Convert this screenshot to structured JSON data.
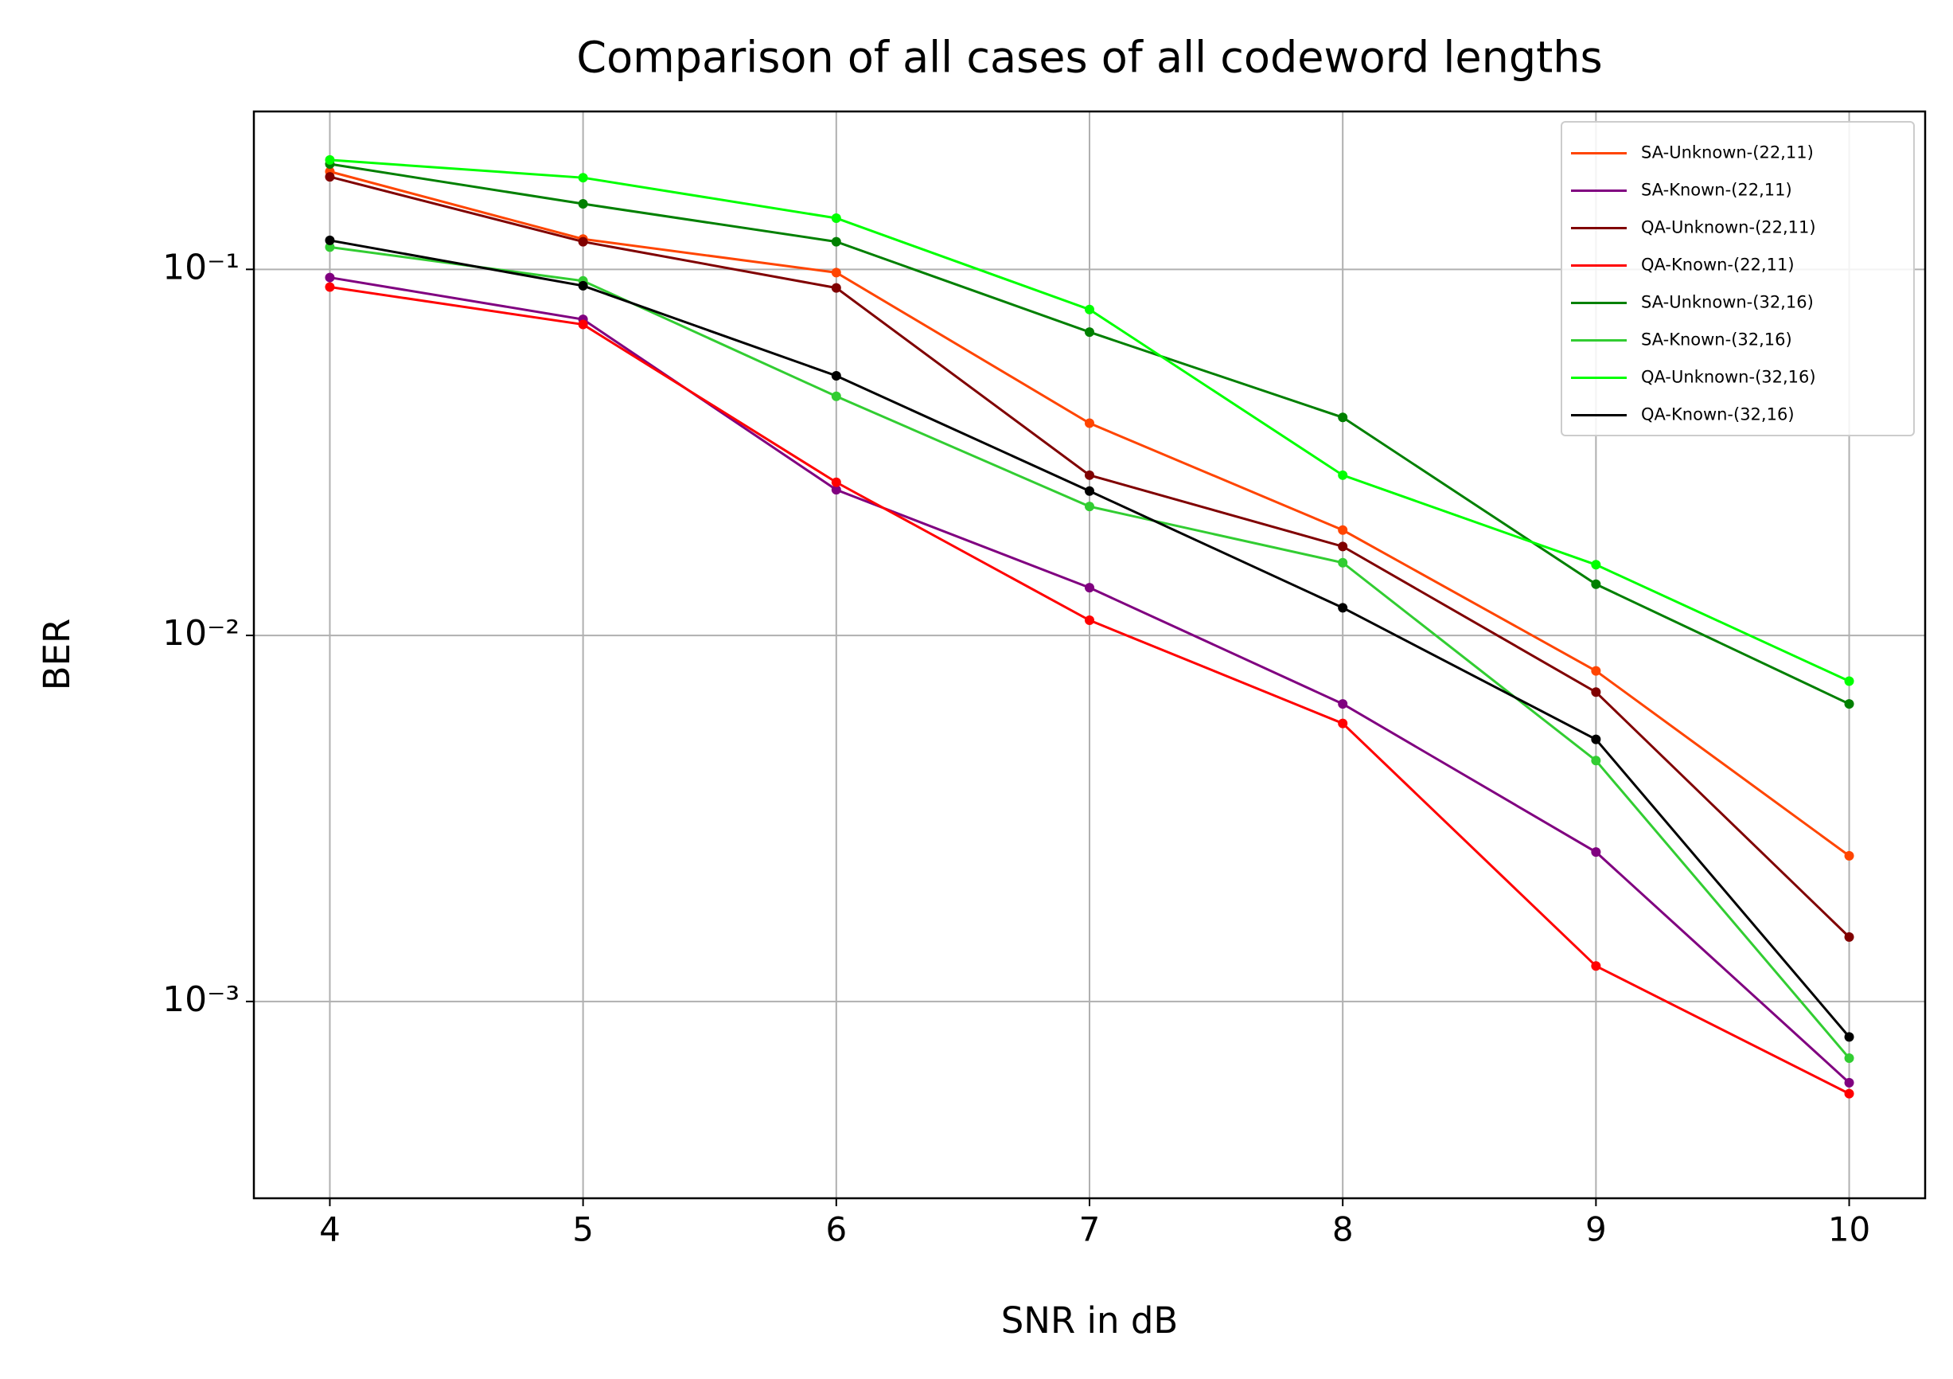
{
  "chart_data": {
    "type": "line",
    "title": "Comparison of all cases of all codeword lengths",
    "xlabel": "SNR in dB",
    "ylabel": "BER",
    "x": [
      4,
      5,
      6,
      7,
      8,
      9,
      10
    ],
    "xlim": [
      3.7,
      10.3
    ],
    "xticks": [
      4,
      5,
      6,
      7,
      8,
      9,
      10
    ],
    "ylim": [
      0.00029,
      0.27
    ],
    "log_y": true,
    "yticks": [
      {
        "value": 0.001,
        "label": "10⁻³"
      },
      {
        "value": 0.01,
        "label": "10⁻²"
      },
      {
        "value": 0.1,
        "label": "10⁻¹"
      }
    ],
    "grid": true,
    "legend": "upper right",
    "series": [
      {
        "name": "SA-Unknown-(22,11)",
        "color": "#ff4500",
        "values": [
          0.185,
          0.121,
          0.098,
          0.038,
          0.0194,
          0.008,
          0.0025
        ]
      },
      {
        "name": "SA-Known-(22,11)",
        "color": "#800080",
        "values": [
          0.095,
          0.073,
          0.025,
          0.0135,
          0.0065,
          0.00256,
          0.0006
        ]
      },
      {
        "name": "QA-Unknown-(22,11)",
        "color": "#800000",
        "values": [
          0.179,
          0.119,
          0.089,
          0.0274,
          0.0175,
          0.007,
          0.0015
        ]
      },
      {
        "name": "QA-Known-(22,11)",
        "color": "#ff0000",
        "values": [
          0.0895,
          0.0707,
          0.0262,
          0.011,
          0.00575,
          0.00125,
          0.00056
        ]
      },
      {
        "name": "SA-Unknown-(32,16)",
        "color": "#008000",
        "values": [
          0.194,
          0.151,
          0.119,
          0.0674,
          0.0394,
          0.0138,
          0.0065
        ]
      },
      {
        "name": "SA-Known-(32,16)",
        "color": "#32cd32",
        "values": [
          0.115,
          0.093,
          0.045,
          0.0225,
          0.0158,
          0.00455,
          0.0007
        ]
      },
      {
        "name": "QA-Unknown-(32,16)",
        "color": "#00ff00",
        "values": [
          0.199,
          0.178,
          0.138,
          0.0777,
          0.0274,
          0.0156,
          0.0075
        ]
      },
      {
        "name": "QA-Known-(32,16)",
        "color": "#000000",
        "values": [
          0.12,
          0.0902,
          0.0512,
          0.0248,
          0.0119,
          0.0052,
          0.0008
        ]
      }
    ]
  }
}
